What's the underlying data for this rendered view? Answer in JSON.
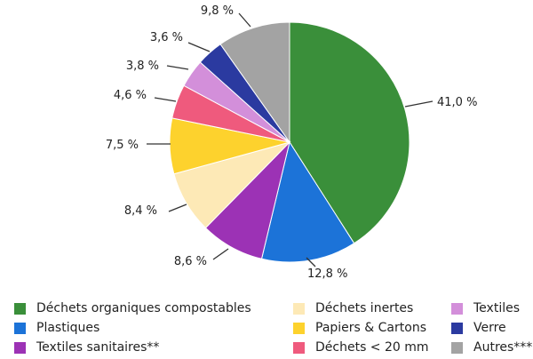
{
  "chart_data": {
    "type": "pie",
    "categories": [
      "Déchets organiques compostables",
      "Plastiques",
      "Textiles sanitaires**",
      "Déchets inertes",
      "Papiers & Cartons",
      "Déchets < 20 mm",
      "Textiles",
      "Verre",
      "Autres***"
    ],
    "values": [
      41.0,
      12.8,
      8.6,
      8.4,
      7.5,
      4.6,
      3.8,
      3.6,
      9.8
    ],
    "data_labels": [
      "41,0 %",
      "12,8 %",
      "8,6 %",
      "8,4 %",
      "7,5 %",
      "4,6 %",
      "3,8 %",
      "3,6 %",
      "9,8 %"
    ],
    "colors": [
      "#3a8f3a",
      "#1c73d8",
      "#9c32b5",
      "#fde9b6",
      "#fdd22d",
      "#ef5a7d",
      "#d38fda",
      "#2b3aa0",
      "#a3a3a3"
    ],
    "start": "top, clockwise",
    "legend_placement": "bottom",
    "title": "",
    "xlabel": "",
    "ylabel": ""
  }
}
